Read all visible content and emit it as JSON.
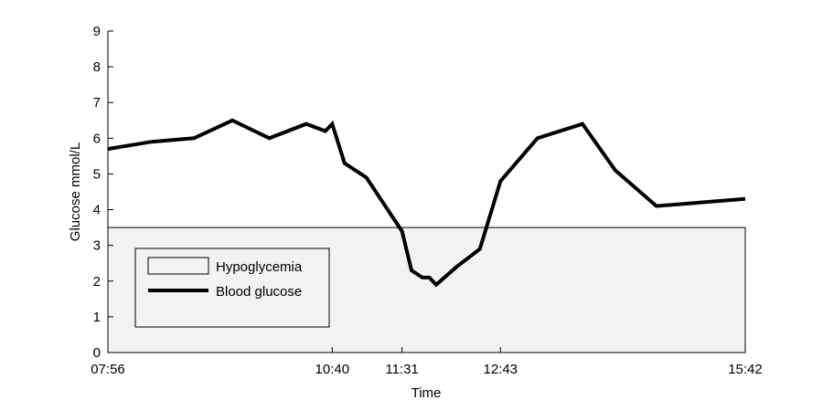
{
  "chart_data": {
    "type": "line",
    "title": "",
    "xlabel": "Time",
    "ylabel": "Glucose mmol/L",
    "x_tick_labels": [
      "07:56",
      "10:40",
      "11:31",
      "12:43",
      "15:42"
    ],
    "x_ticks_minutes": [
      476,
      640,
      691,
      763,
      942
    ],
    "xlim_time": [
      "07:56",
      "15:42"
    ],
    "ylim": [
      0,
      9
    ],
    "y_ticks": [
      0,
      1,
      2,
      3,
      4,
      5,
      6,
      7,
      8,
      9
    ],
    "grid": false,
    "legend_position": "lower-left",
    "hypoglycemia_threshold": 3.5,
    "series": [
      {
        "name": "Blood glucose",
        "x_time": [
          "07:56",
          "08:28",
          "08:59",
          "09:27",
          "09:54",
          "10:21",
          "10:35",
          "10:40",
          "10:49",
          "11:05",
          "11:24",
          "11:31",
          "11:38",
          "11:46",
          "11:51",
          "11:56",
          "12:11",
          "12:28",
          "12:43",
          "13:10",
          "13:43",
          "14:07",
          "14:37",
          "15:42"
        ],
        "values": [
          5.7,
          5.9,
          6.0,
          6.5,
          6.0,
          6.4,
          6.2,
          6.4,
          5.3,
          4.9,
          3.8,
          3.4,
          2.3,
          2.1,
          2.1,
          1.9,
          2.4,
          2.9,
          4.8,
          6.0,
          6.4,
          5.1,
          4.1,
          4.3
        ],
        "color": "#000000"
      }
    ],
    "regions": [
      {
        "name": "Hypoglycemia",
        "y_range": [
          0,
          3.5
        ],
        "color": "#f2f2f2"
      }
    ],
    "legend": [
      "Hypoglycemia",
      "Blood glucose"
    ]
  }
}
